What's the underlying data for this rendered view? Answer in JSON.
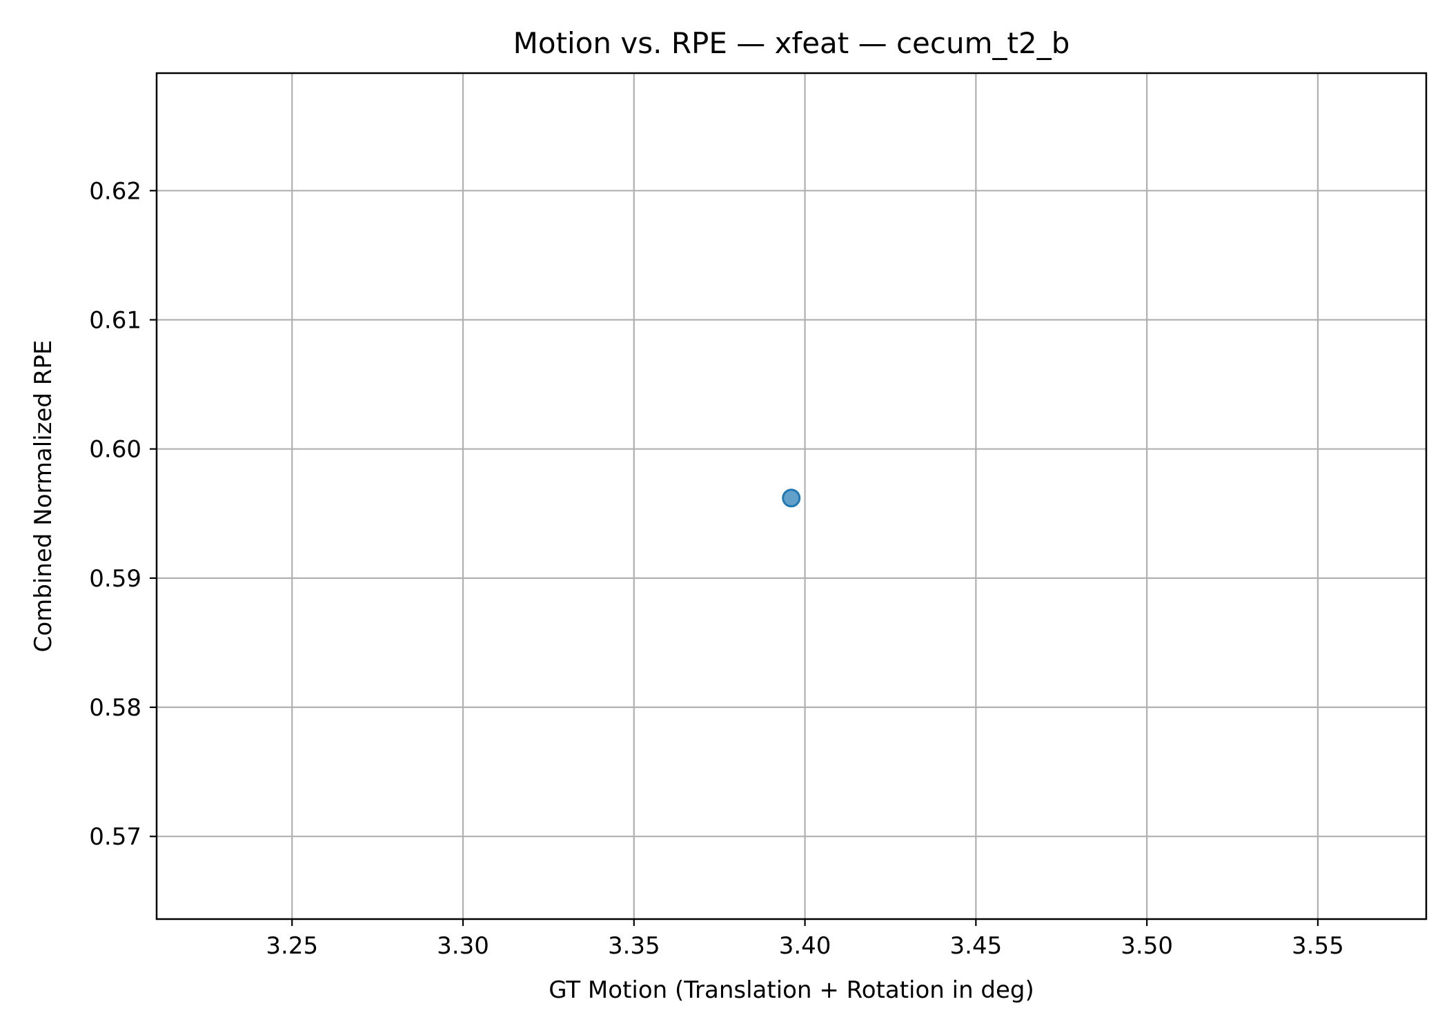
{
  "chart_data": {
    "type": "scatter",
    "title": "Motion vs. RPE — xfeat — cecum_t2_b",
    "xlabel": "GT Motion (Translation + Rotation in deg)",
    "ylabel": "Combined Normalized RPE",
    "xlim": [
      3.2104,
      3.5817
    ],
    "ylim": [
      0.5636,
      0.6291
    ],
    "xticks": [
      3.25,
      3.3,
      3.35,
      3.4,
      3.45,
      3.5,
      3.55
    ],
    "xtick_labels": [
      "3.25",
      "3.30",
      "3.35",
      "3.40",
      "3.45",
      "3.50",
      "3.55"
    ],
    "yticks": [
      0.57,
      0.58,
      0.59,
      0.6,
      0.61,
      0.62
    ],
    "ytick_labels": [
      "0.57",
      "0.58",
      "0.59",
      "0.60",
      "0.61",
      "0.62"
    ],
    "grid": true,
    "series": [
      {
        "color": "#1f77b4",
        "points": [
          {
            "x": 3.396,
            "y": 0.5962
          }
        ]
      }
    ]
  }
}
